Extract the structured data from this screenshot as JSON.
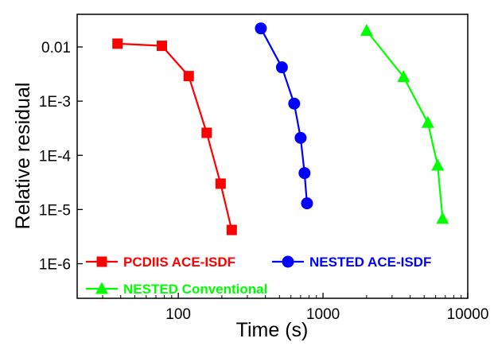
{
  "chart_data": {
    "type": "line",
    "xlabel": "Time (s)",
    "ylabel": "Relative residual",
    "x_scale": "log",
    "y_scale": "log",
    "xlim": [
      20,
      10000
    ],
    "ylim": [
      2.3e-07,
      0.04
    ],
    "x_ticks": [
      {
        "value": 100,
        "label": "100"
      },
      {
        "value": 1000,
        "label": "1000"
      },
      {
        "value": 10000,
        "label": "10000"
      }
    ],
    "y_ticks": [
      {
        "value": 0.01,
        "label": "0.01"
      },
      {
        "value": 0.001,
        "label": "1E-3"
      },
      {
        "value": 0.0001,
        "label": "1E-4"
      },
      {
        "value": 1e-05,
        "label": "1E-5"
      },
      {
        "value": 1e-06,
        "label": "1E-6"
      }
    ],
    "grid": false,
    "legend_position": "bottom-left",
    "series": [
      {
        "name": "PCDIIS ACE-ISDF",
        "color": "#ff0000",
        "marker": "square",
        "points": [
          [
            38,
            0.0115
          ],
          [
            77,
            0.0105
          ],
          [
            118,
            0.0029
          ],
          [
            157,
            0.00026
          ],
          [
            196,
            3e-05
          ],
          [
            234,
            4.2e-06
          ]
        ]
      },
      {
        "name": "NESTED ACE-ISDF",
        "color": "#0000ff",
        "marker": "circle",
        "points": [
          [
            372,
            0.022
          ],
          [
            520,
            0.0042
          ],
          [
            632,
            0.0009
          ],
          [
            700,
            0.00021
          ],
          [
            745,
            4.7e-05
          ],
          [
            775,
            1.3e-05
          ]
        ]
      },
      {
        "name": "NESTED Conventional",
        "color": "#00ff00",
        "marker": "triangle",
        "points": [
          [
            2000,
            0.02
          ],
          [
            3600,
            0.0028
          ],
          [
            5300,
            0.0004
          ],
          [
            6200,
            6.5e-05
          ],
          [
            6700,
            6.8e-06
          ]
        ]
      }
    ]
  }
}
